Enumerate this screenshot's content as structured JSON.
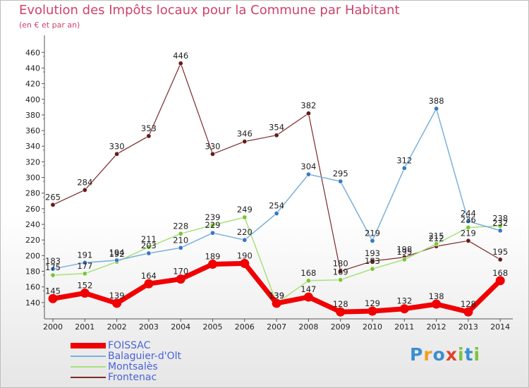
{
  "header": {
    "title": "Evolution des Impôts locaux pour la Commune par Habitant",
    "subtitle": "(en € et par an)"
  },
  "logo": {
    "letters": [
      {
        "char": "P",
        "color": "#3a8fd0"
      },
      {
        "char": "r",
        "color": "#f0a020"
      },
      {
        "char": "o",
        "color": "#3a8fd0"
      },
      {
        "char": "x",
        "color": "#e0422a"
      },
      {
        "char": "i",
        "color": "#7cc43a"
      },
      {
        "char": "t",
        "color": "#3a8fd0"
      },
      {
        "char": "i",
        "color": "#7cc43a"
      }
    ]
  },
  "chart_data": {
    "type": "line",
    "title": "Evolution des Impôts locaux pour la Commune par Habitant",
    "subtitle": "(en € et par an)",
    "x": [
      "2000",
      "2001",
      "2002",
      "2003",
      "2004",
      "2005",
      "2006",
      "2007",
      "2008",
      "2009",
      "2010",
      "2011",
      "2012",
      "2013",
      "2014"
    ],
    "ylim": [
      120,
      460
    ],
    "yticks": [
      140,
      160,
      180,
      200,
      220,
      240,
      260,
      280,
      300,
      320,
      340,
      360,
      380,
      400,
      420,
      440,
      460
    ],
    "grid": false,
    "legend_position": "bottom-left",
    "series": [
      {
        "name": "FOISSAC",
        "color": "#f00000",
        "width": 7,
        "marker": "#f00000",
        "labels": true,
        "values": [
          145,
          152,
          139,
          164,
          170,
          189,
          190,
          139,
          147,
          128,
          129,
          132,
          138,
          128,
          168
        ]
      },
      {
        "name": "Balaguier-d'Olt",
        "color": "#7ab0dc",
        "width": 1.5,
        "marker": "#3a78c2",
        "labels": true,
        "values": [
          183,
          191,
          194,
          203,
          210,
          229,
          220,
          254,
          304,
          295,
          219,
          312,
          388,
          244,
          232
        ]
      },
      {
        "name": "Montsalès",
        "color": "#a8e07c",
        "width": 1.5,
        "marker": "#7cc43a",
        "labels": true,
        "values": [
          175,
          177,
          192,
          211,
          228,
          239,
          249,
          139,
          168,
          169,
          183,
          195,
          215,
          236,
          238
        ]
      },
      {
        "name": "Frontenac",
        "color": "#7c2a2a",
        "width": 1.2,
        "marker": "#661b1b",
        "labels": true,
        "values": [
          265,
          284,
          330,
          353,
          446,
          330,
          346,
          354,
          382,
          180,
          193,
          198,
          212,
          219,
          195
        ]
      }
    ]
  }
}
